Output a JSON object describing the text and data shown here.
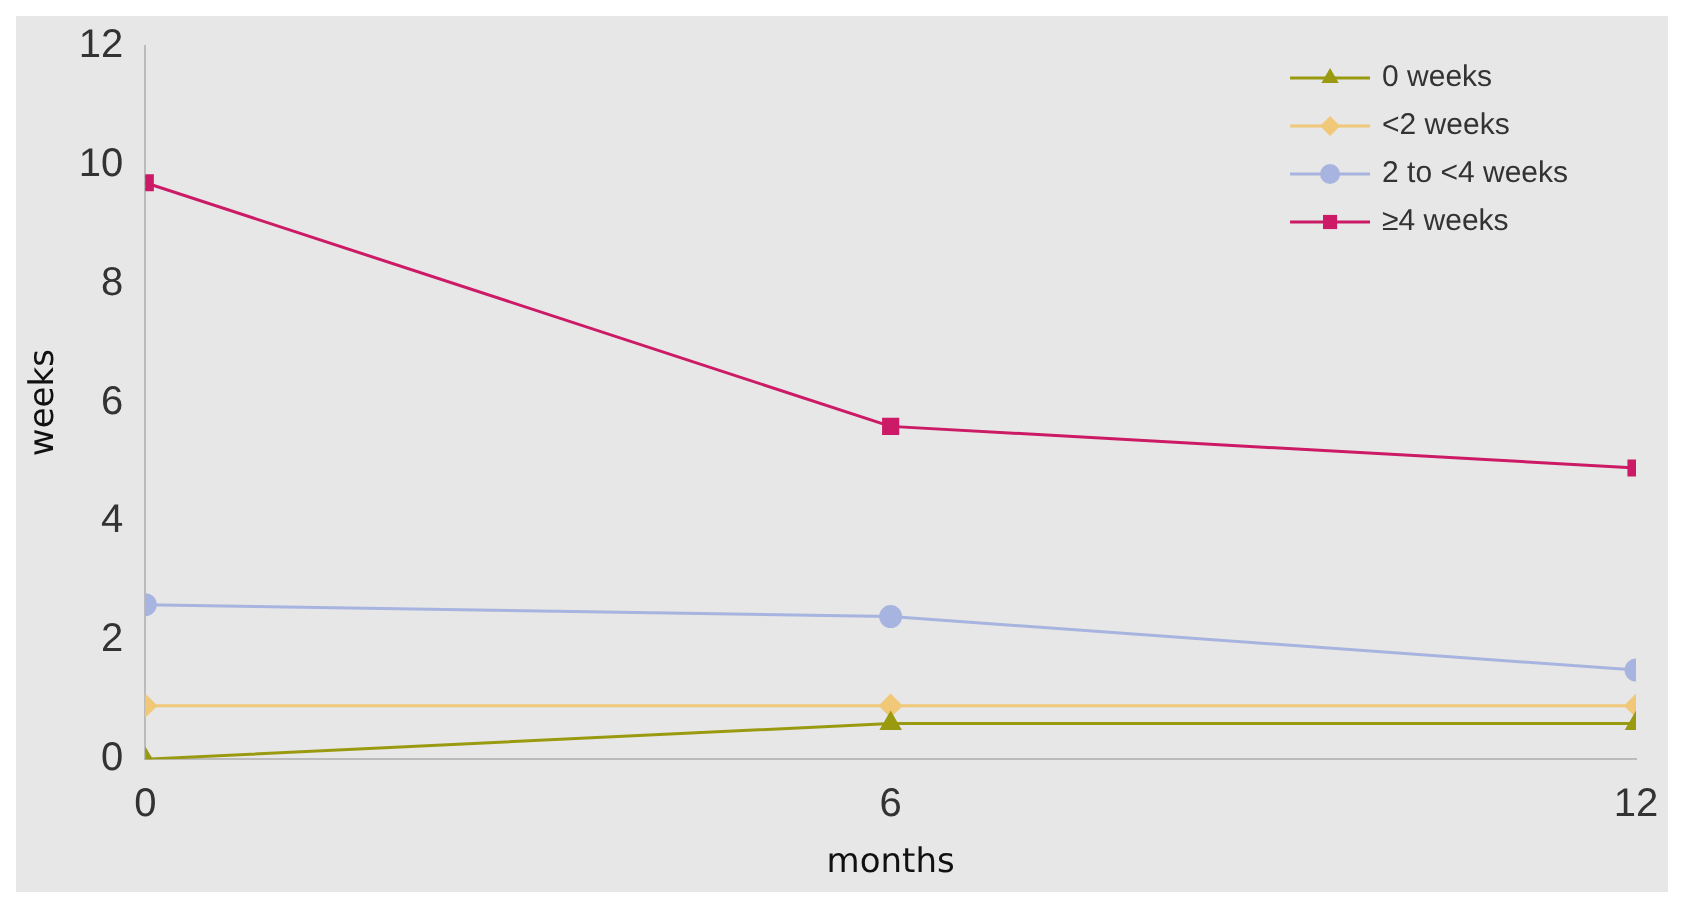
{
  "chart_data": {
    "type": "line",
    "xlabel": "months",
    "ylabel": "weeks",
    "x": [
      0,
      6,
      12
    ],
    "xlim": [
      0,
      12
    ],
    "xticks": [
      0,
      6,
      12
    ],
    "ylim": [
      0,
      12
    ],
    "yticks": [
      0,
      2,
      4,
      6,
      8,
      10,
      12
    ],
    "grid": false,
    "legend": "top right",
    "series": [
      {
        "name": "0 weeks",
        "color": "#9a9a10",
        "marker": "triangle",
        "values": [
          0,
          0.6,
          0.6
        ]
      },
      {
        "name": "<2 weeks",
        "color": "#f0c878",
        "marker": "diamond",
        "values": [
          0.9,
          0.9,
          0.9
        ]
      },
      {
        "name": "2 to <4 weeks",
        "color": "#a8b4e0",
        "marker": "circle",
        "values": [
          2.6,
          2.4,
          1.5
        ]
      },
      {
        "name": "≥4 weeks",
        "color": "#cc1a66",
        "marker": "square",
        "values": [
          9.7,
          5.6,
          4.9
        ]
      }
    ]
  }
}
